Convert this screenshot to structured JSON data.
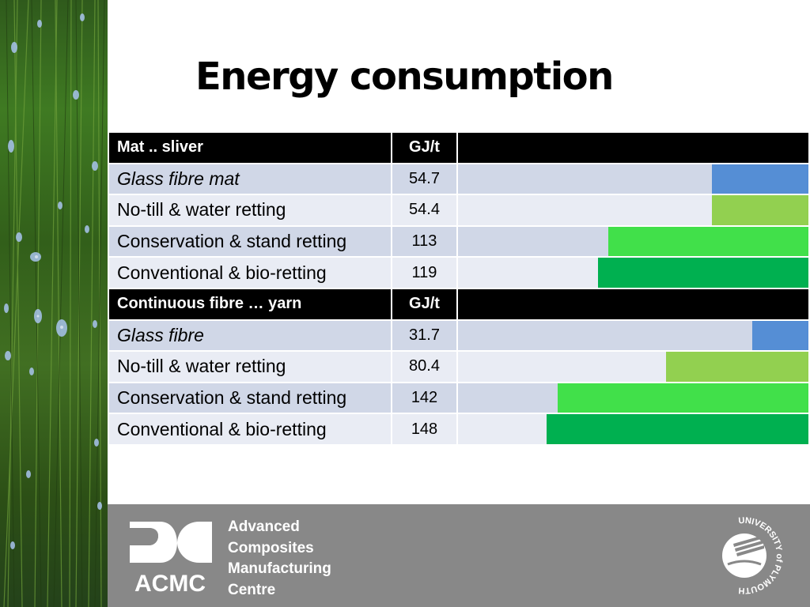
{
  "slide": {
    "title": "Energy consumption"
  },
  "table": {
    "sections": [
      {
        "header": {
          "label": "Mat  .. sliver",
          "unit": "GJ/t"
        },
        "rows": [
          {
            "label": "Glass fibre mat",
            "value": "54.7",
            "italic": true,
            "color": "#558ed5"
          },
          {
            "label": "No-till & water retting",
            "value": "54.4",
            "italic": false,
            "color": "#92d050"
          },
          {
            "label": "Conservation &  stand retting",
            "value": "113",
            "italic": false,
            "color": "#41e04a"
          },
          {
            "label": "Conventional & bio-retting",
            "value": "119",
            "italic": false,
            "color": "#00b050"
          }
        ]
      },
      {
        "header": {
          "label": "Continuous fibre … yarn",
          "unit": "GJ/t"
        },
        "rows": [
          {
            "label": "Glass fibre",
            "value": "31.7",
            "italic": true,
            "color": "#558ed5"
          },
          {
            "label": "No-till & water retting",
            "value": "80.4",
            "italic": false,
            "color": "#92d050"
          },
          {
            "label": "Conservation &  stand retting",
            "value": "142",
            "italic": false,
            "color": "#41e04a"
          },
          {
            "label": "Conventional & bio-retting",
            "value": "148",
            "italic": false,
            "color": "#00b050"
          }
        ]
      }
    ]
  },
  "chart_data": {
    "type": "bar",
    "orientation": "horizontal",
    "categories": [
      "Glass fibre mat",
      "No-till & water retting",
      "Conservation &  stand retting",
      "Conventional & bio-retting",
      "Glass fibre",
      "No-till & water retting",
      "Conservation &  stand retting",
      "Conventional & bio-retting"
    ],
    "values": [
      54.7,
      54.4,
      113,
      119,
      31.7,
      80.4,
      142,
      148
    ],
    "unit": "GJ/t",
    "xlim": [
      0,
      200
    ]
  },
  "footer": {
    "logo_text": "ACMC",
    "centre_lines": [
      "Advanced",
      "Composites",
      "Manufacturing",
      "Centre"
    ],
    "university_seal_text": "UNIVERSITY of PLYMOUTH"
  },
  "colors": {
    "header_bg": "#000000",
    "row_odd": "#d0d7e7",
    "row_even": "#e9ecf4",
    "footer_bg": "#888888"
  }
}
